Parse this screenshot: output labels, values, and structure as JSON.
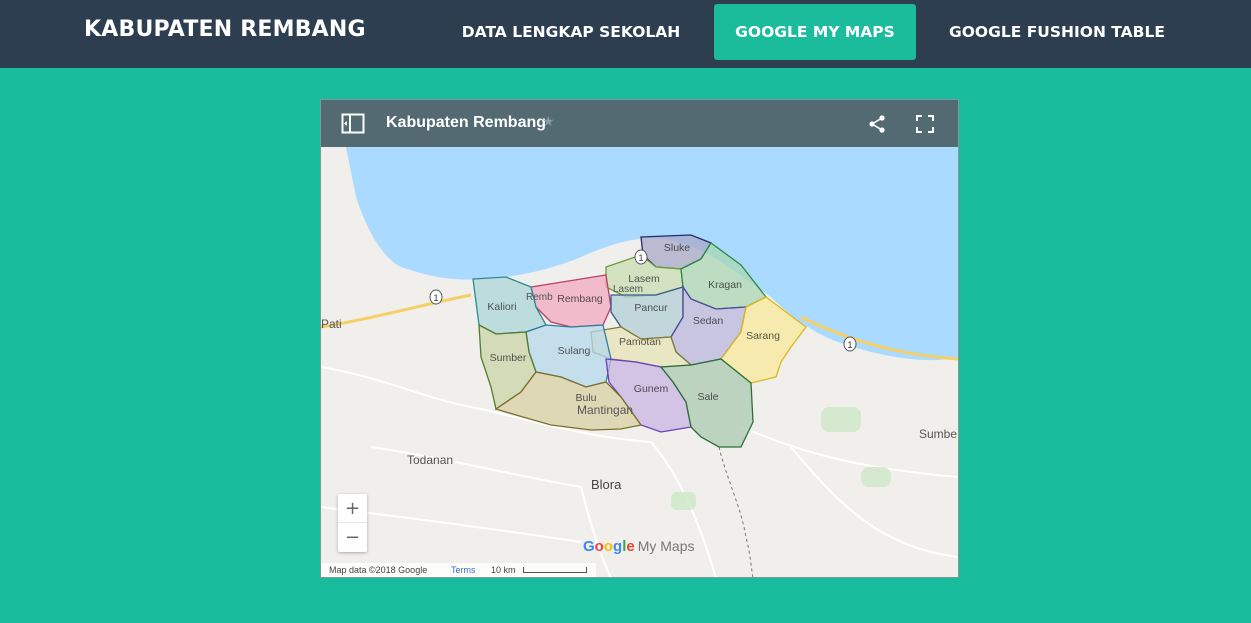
{
  "navbar": {
    "brand": "KABUPATEN REMBANG",
    "items": [
      {
        "label": "DATA LENGKAP SEKOLAH",
        "active": false
      },
      {
        "label": "GOOGLE MY MAPS",
        "active": true
      },
      {
        "label": "GOOGLE FUSHION TABLE",
        "active": false
      }
    ]
  },
  "map": {
    "title": "Kabupaten Rembang",
    "star": "★",
    "icons": {
      "panel": "panel-toggle-icon",
      "share": "share-icon",
      "fullscreen": "fullscreen-icon"
    },
    "districts": [
      "Sluke",
      "Lasem",
      "Kragan",
      "Rembang",
      "Kaliori",
      "Pancur",
      "Sedan",
      "Sarang",
      "Pamotan",
      "Sulang",
      "Sumber",
      "Gunem",
      "Sale",
      "Bulu"
    ],
    "places": {
      "pati": "Pati",
      "todanan": "Todanan",
      "blora": "Blora",
      "sumber_east": "Sumbe",
      "mantingan": "Mantingan",
      "lasem_base": "Lasem",
      "rembang_base": "Remb"
    },
    "road_markers": [
      "1",
      "1",
      "1"
    ],
    "zoom_in": "+",
    "zoom_out": "−",
    "logo_google": "Google",
    "logo_product": "My Maps",
    "map_data": "Map data ©2018 Google",
    "terms": "Terms",
    "scale_label": "10 km",
    "colors": {
      "water": "#aadaff",
      "land": "#f1efeb",
      "header": "#536a73",
      "navbar": "#2c3e50",
      "page": "#18bc9c",
      "active_tab": "#1abc9c"
    }
  }
}
